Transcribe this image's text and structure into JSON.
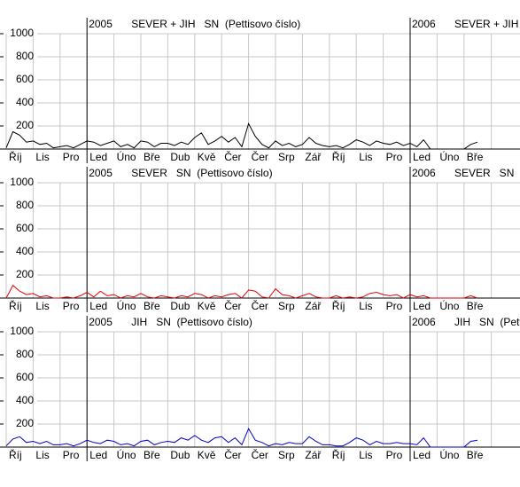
{
  "chart_data": [
    {
      "type": "line",
      "title": "SEVER + JIH   SN  (Pettisovo číslo)",
      "year_labels": [
        "2005",
        "2006"
      ],
      "color": "#000000",
      "categories": [
        "Říj",
        null,
        null,
        null,
        "Lis",
        null,
        null,
        null,
        "Pro",
        null,
        null,
        null,
        "Led",
        null,
        null,
        null,
        "Úno",
        null,
        null,
        null,
        "Bře",
        null,
        null,
        null,
        "Dub",
        null,
        null,
        null,
        "Kvě",
        null,
        null,
        null,
        "Čer",
        null,
        null,
        null,
        "Čer",
        null,
        null,
        null,
        "Srp",
        null,
        null,
        null,
        "Zář",
        null,
        null,
        null,
        "Říj",
        null,
        null,
        null,
        "Lis",
        null,
        null,
        null,
        "Pro",
        null,
        null,
        null,
        "Led",
        null,
        null,
        null,
        "Úno",
        null,
        null,
        null,
        "Bře",
        null,
        null
      ],
      "values": [
        10,
        150,
        120,
        60,
        70,
        40,
        50,
        10,
        20,
        30,
        10,
        40,
        70,
        60,
        30,
        50,
        70,
        20,
        40,
        10,
        70,
        60,
        20,
        50,
        50,
        30,
        60,
        40,
        100,
        140,
        40,
        70,
        110,
        60,
        100,
        20,
        220,
        110,
        40,
        10,
        70,
        30,
        50,
        20,
        40,
        100,
        50,
        30,
        20,
        30,
        10,
        40,
        80,
        60,
        30,
        70,
        50,
        40,
        60,
        30,
        50,
        20,
        80,
        0,
        0,
        0,
        0,
        0,
        0,
        40,
        60
      ],
      "ylim": [
        0,
        1000
      ],
      "yticks": [
        200,
        400,
        600,
        800,
        1000
      ],
      "grid": true
    },
    {
      "type": "line",
      "title": "SEVER   SN  (Pettisovo číslo)",
      "year_labels": [
        "2005",
        "2006"
      ],
      "color": "#e00000",
      "categories": [
        "Říj",
        null,
        null,
        null,
        "Lis",
        null,
        null,
        null,
        "Pro",
        null,
        null,
        null,
        "Led",
        null,
        null,
        null,
        "Úno",
        null,
        null,
        null,
        "Bře",
        null,
        null,
        null,
        "Dub",
        null,
        null,
        null,
        "Kvě",
        null,
        null,
        null,
        "Čer",
        null,
        null,
        null,
        "Čer",
        null,
        null,
        null,
        "Srp",
        null,
        null,
        null,
        "Zář",
        null,
        null,
        null,
        "Říj",
        null,
        null,
        null,
        "Lis",
        null,
        null,
        null,
        "Pro",
        null,
        null,
        null,
        "Led",
        null,
        null,
        null,
        "Úno",
        null,
        null,
        null,
        "Bře",
        null,
        null
      ],
      "values": [
        0,
        110,
        60,
        30,
        40,
        10,
        20,
        0,
        0,
        10,
        0,
        20,
        50,
        10,
        60,
        20,
        30,
        0,
        20,
        10,
        40,
        10,
        0,
        20,
        10,
        0,
        20,
        10,
        40,
        30,
        0,
        20,
        10,
        30,
        40,
        0,
        70,
        60,
        10,
        0,
        80,
        30,
        20,
        0,
        20,
        40,
        10,
        0,
        0,
        20,
        0,
        10,
        0,
        10,
        40,
        50,
        30,
        20,
        30,
        0,
        30,
        10,
        20,
        0,
        0,
        0,
        0,
        0,
        0,
        20,
        0
      ],
      "ylim": [
        0,
        1000
      ],
      "yticks": [
        200,
        400,
        600,
        800,
        1000
      ],
      "grid": true
    },
    {
      "type": "line",
      "title": "JIH   SN  (Pettisovo číslo)",
      "year_labels": [
        "2005",
        "2006"
      ],
      "color": "#0000c8",
      "categories": [
        "Říj",
        null,
        null,
        null,
        "Lis",
        null,
        null,
        null,
        "Pro",
        null,
        null,
        null,
        "Led",
        null,
        null,
        null,
        "Úno",
        null,
        null,
        null,
        "Bře",
        null,
        null,
        null,
        "Dub",
        null,
        null,
        null,
        "Kvě",
        null,
        null,
        null,
        "Čer",
        null,
        null,
        null,
        "Čer",
        null,
        null,
        null,
        "Srp",
        null,
        null,
        null,
        "Zář",
        null,
        null,
        null,
        "Říj",
        null,
        null,
        null,
        "Lis",
        null,
        null,
        null,
        "Pro",
        null,
        null,
        null,
        "Led",
        null,
        null,
        null,
        "Úno",
        null,
        null,
        null,
        "Bře",
        null,
        null
      ],
      "values": [
        10,
        70,
        90,
        40,
        50,
        30,
        50,
        20,
        20,
        30,
        10,
        30,
        60,
        40,
        30,
        60,
        50,
        20,
        30,
        10,
        50,
        60,
        20,
        40,
        50,
        40,
        80,
        60,
        100,
        60,
        40,
        80,
        90,
        40,
        80,
        20,
        160,
        60,
        40,
        10,
        30,
        20,
        40,
        30,
        30,
        90,
        50,
        20,
        20,
        10,
        10,
        40,
        80,
        60,
        20,
        50,
        30,
        30,
        40,
        30,
        30,
        20,
        80,
        0,
        0,
        0,
        0,
        0,
        0,
        50,
        60
      ],
      "ylim": [
        0,
        1000
      ],
      "yticks": [
        200,
        400,
        600,
        800,
        1000
      ],
      "grid": true
    }
  ]
}
